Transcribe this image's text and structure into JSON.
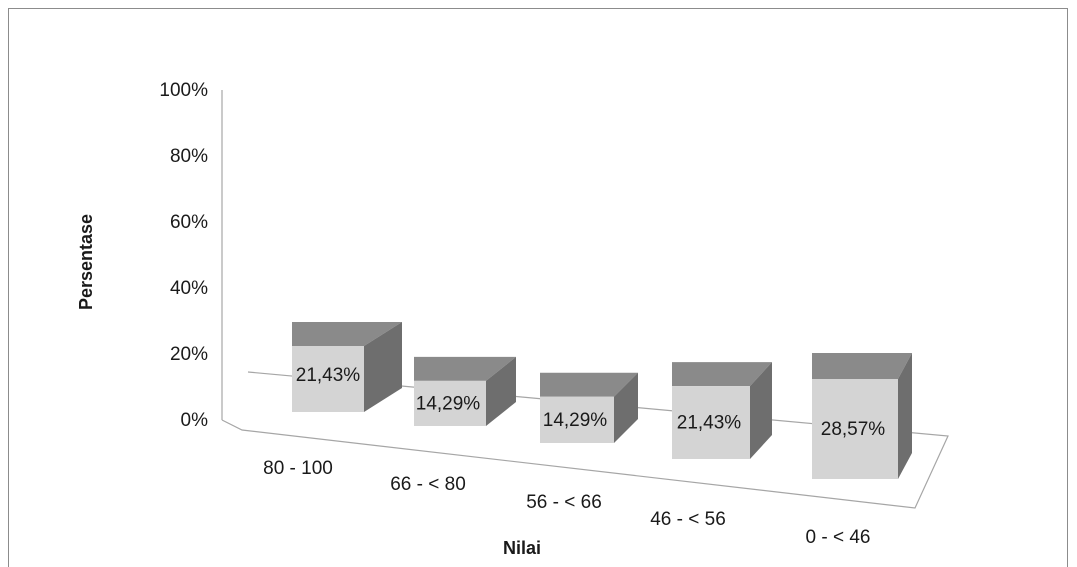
{
  "chart_data": {
    "type": "bar",
    "xlabel": "Nilai",
    "ylabel": "Persentase",
    "ylim": [
      0,
      100
    ],
    "y_ticks": [
      "0%",
      "20%",
      "40%",
      "60%",
      "80%",
      "100%"
    ],
    "categories": [
      "80 - 100",
      "66 - < 80",
      "56 - < 66",
      "46 - < 56",
      "0 - < 46"
    ],
    "values": [
      21.43,
      14.29,
      14.29,
      21.43,
      28.57
    ],
    "data_labels": [
      "21,43%",
      "14,29%",
      "14,29%",
      "21,43%",
      "28,57%"
    ],
    "grid": false,
    "legend": "none",
    "colors": {
      "front": "#d4d4d4",
      "top": "#8a8a8a",
      "side": "#6e6e6e",
      "axis": "#a6a6a6"
    }
  }
}
